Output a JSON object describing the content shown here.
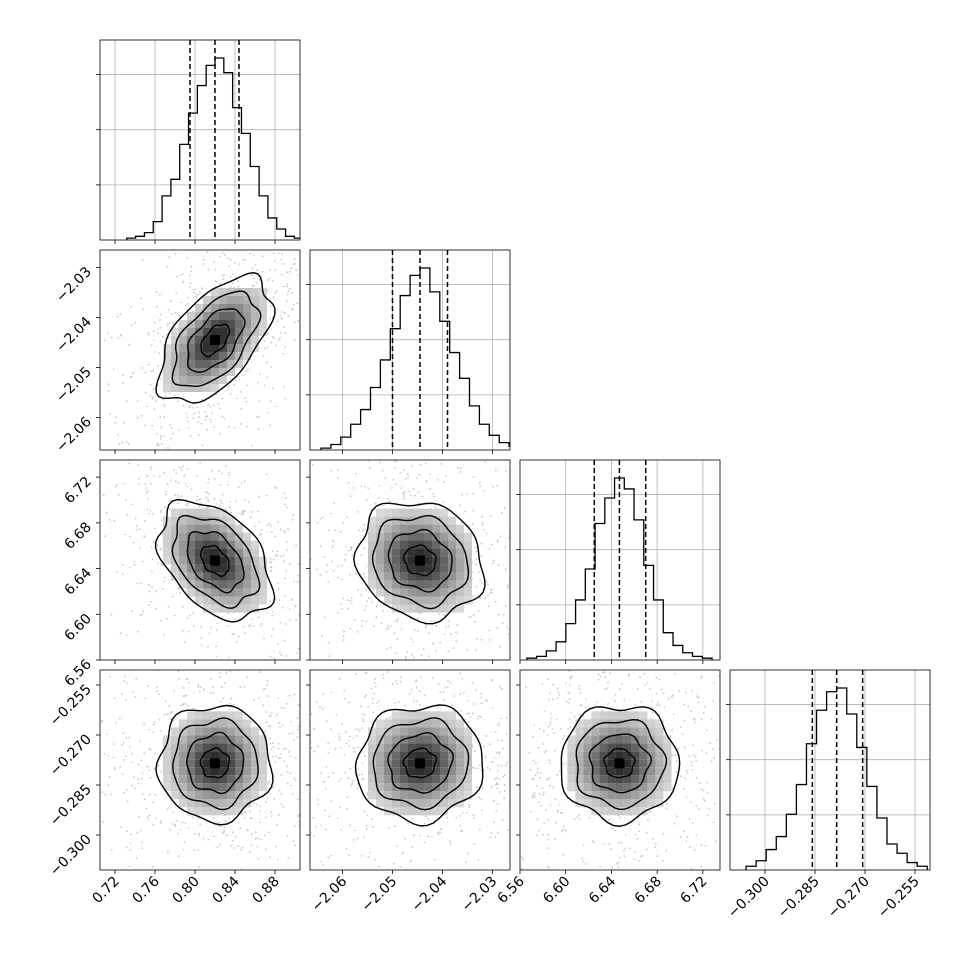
{
  "chart_data": {
    "type": "corner-plot",
    "title": "",
    "grid": true,
    "parameters": [
      {
        "ticks": [
          0.72,
          0.76,
          0.8,
          0.84,
          0.88
        ],
        "tick_labels": [
          "0.72",
          "0.76",
          "0.80",
          "0.84",
          "0.88"
        ],
        "range": [
          0.705,
          0.905
        ],
        "median": 0.82,
        "q16": 0.795,
        "q84": 0.844,
        "hist_counts": [
          1,
          2,
          4,
          10,
          24,
          33,
          52,
          69,
          84,
          95,
          99,
          91,
          72,
          58,
          40,
          24,
          12,
          6,
          2,
          1
        ]
      },
      {
        "ticks": [
          -2.06,
          -2.05,
          -2.04,
          -2.03
        ],
        "tick_labels": [
          "−2.06",
          "−2.05",
          "−2.04",
          "−2.03"
        ],
        "range": [
          -2.0665,
          -2.0265
        ],
        "median": -2.0445,
        "q16": -2.05,
        "q84": -2.039,
        "hist_counts": [
          1,
          3,
          7,
          14,
          22,
          34,
          49,
          66,
          84,
          95,
          99,
          86,
          70,
          53,
          39,
          24,
          14,
          8,
          4,
          2
        ]
      },
      {
        "ticks": [
          6.56,
          6.6,
          6.64,
          6.68,
          6.72
        ],
        "tick_labels": [
          "6.56",
          "6.60",
          "6.64",
          "6.68",
          "6.72"
        ],
        "range": [
          6.56,
          6.735
        ],
        "median": 6.647,
        "q16": 6.625,
        "q84": 6.67,
        "hist_counts": [
          1,
          2,
          5,
          10,
          20,
          33,
          50,
          75,
          89,
          100,
          94,
          77,
          52,
          33,
          15,
          8,
          4,
          2,
          1
        ]
      },
      {
        "ticks": [
          -0.3,
          -0.285,
          -0.27,
          -0.255
        ],
        "tick_labels": [
          "−0.300",
          "−0.285",
          "−0.270",
          "−0.255"
        ],
        "range": [
          -0.3105,
          -0.2505
        ],
        "median": -0.2785,
        "q16": -0.2858,
        "q84": -0.2707,
        "hist_counts": [
          2,
          5,
          11,
          18,
          30,
          46,
          68,
          86,
          96,
          98,
          84,
          66,
          45,
          28,
          14,
          9,
          4,
          2
        ]
      }
    ],
    "correlations": [
      [
        0,
        1,
        0.55
      ],
      [
        0,
        2,
        -0.4
      ],
      [
        0,
        3,
        0.0
      ],
      [
        1,
        2,
        -0.12
      ],
      [
        1,
        3,
        0.05
      ],
      [
        2,
        3,
        0.0
      ]
    ]
  }
}
